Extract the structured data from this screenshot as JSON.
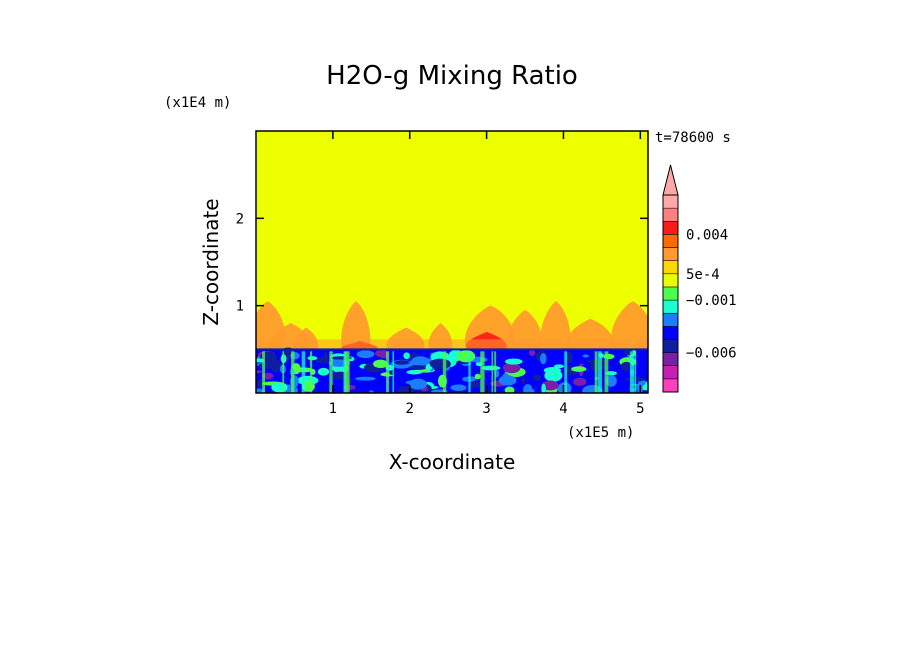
{
  "chart_data": {
    "type": "heatmap",
    "title": "H2O-g Mixing Ratio",
    "xlabel": "X-coordinate",
    "ylabel": "Z-coordinate",
    "x_units": "(x1E5 m)",
    "y_units": "(x1E4 m)",
    "time_label": "t=78600 s",
    "xlim": [
      0,
      5.1
    ],
    "ylim": [
      0,
      3.0
    ],
    "x_ticks": [
      "1",
      "2",
      "3",
      "4",
      "5"
    ],
    "y_ticks": [
      "1",
      "2"
    ],
    "background_level": "yellow (~0)",
    "boundary_layer_top": 0.5,
    "plumes": [
      {
        "x": 0.15,
        "top": 1.05,
        "color": "#ff9a2e"
      },
      {
        "x": 0.45,
        "top": 0.8,
        "color": "#ff9a2e"
      },
      {
        "x": 0.65,
        "top": 0.75,
        "color": "#ff9a2e"
      },
      {
        "x": 1.3,
        "top": 1.05,
        "color": "#ff9a2e"
      },
      {
        "x": 1.35,
        "top": 0.6,
        "color": "#ff1a1a"
      },
      {
        "x": 1.95,
        "top": 0.75,
        "color": "#ff9a2e"
      },
      {
        "x": 2.4,
        "top": 0.8,
        "color": "#ff9a2e"
      },
      {
        "x": 3.05,
        "top": 1.0,
        "color": "#ff9a2e"
      },
      {
        "x": 3.0,
        "top": 0.7,
        "color": "#ff1a1a"
      },
      {
        "x": 3.5,
        "top": 0.95,
        "color": "#ff9a2e"
      },
      {
        "x": 3.9,
        "top": 1.05,
        "color": "#ff9a2e"
      },
      {
        "x": 4.35,
        "top": 0.85,
        "color": "#ff9a2e"
      },
      {
        "x": 4.9,
        "top": 1.05,
        "color": "#ff9a2e"
      },
      {
        "x": 5.05,
        "top": 0.65,
        "color": "#ff9a2e"
      }
    ],
    "colorbar": {
      "levels": [
        {
          "color": "#ff3fbf"
        },
        {
          "color": "#c81eb4"
        },
        {
          "color": "#7b1fa8"
        },
        {
          "color": "#0f1fa0"
        },
        {
          "color": "#0000ff"
        },
        {
          "color": "#1b7dff"
        },
        {
          "color": "#19ffd0"
        },
        {
          "color": "#4cff4c"
        },
        {
          "color": "#e8ff00"
        },
        {
          "color": "#ffd700"
        },
        {
          "color": "#ff9a2e"
        },
        {
          "color": "#ff6a00"
        },
        {
          "color": "#ff1a1a"
        },
        {
          "color": "#ff8080"
        },
        {
          "color": "#ffa8a8"
        }
      ],
      "labels": [
        "0.004",
        "5e-4",
        "−0.001",
        "−0.006"
      ],
      "overflow_arrow": true
    }
  }
}
